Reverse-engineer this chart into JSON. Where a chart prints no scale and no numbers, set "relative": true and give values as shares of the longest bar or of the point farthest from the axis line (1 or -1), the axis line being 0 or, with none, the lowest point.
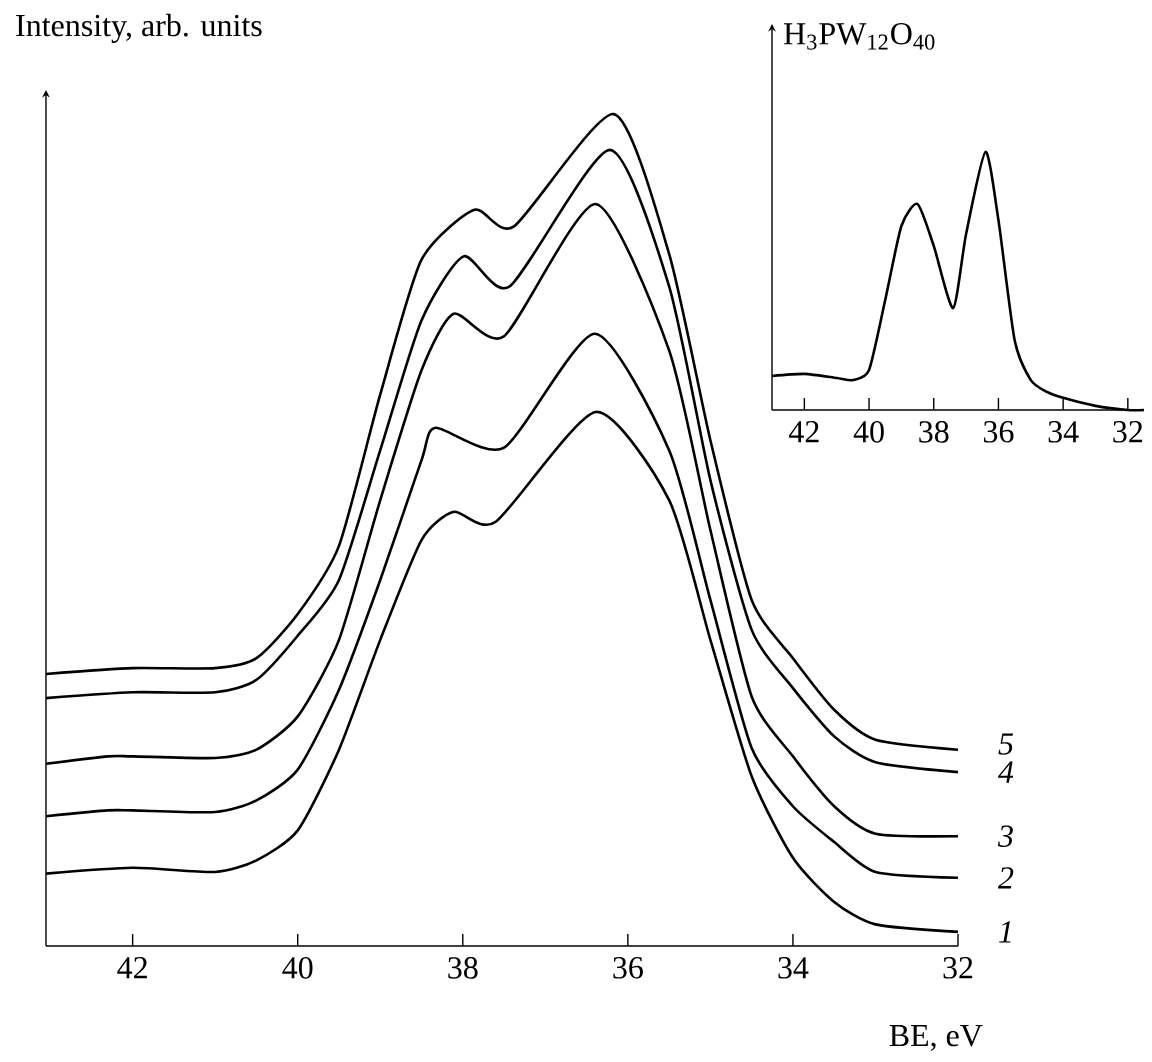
{
  "chart_data": [
    {
      "type": "line",
      "relative": true,
      "xlabel": "BE, eV",
      "ylabel": "Intensity, arb. units",
      "xlim": [
        43.05,
        32
      ],
      "xticks": [
        42,
        40,
        38,
        36,
        34,
        32
      ],
      "series": [
        {
          "name": "5",
          "color": "#000000",
          "x": [
            43.05,
            42,
            41,
            40.5,
            40,
            39.5,
            39,
            38.5,
            37.86,
            37.38,
            36.17,
            35.5,
            35,
            34.5,
            34,
            33.5,
            33,
            32
          ],
          "values": [
            0.327,
            0.334,
            0.334,
            0.346,
            0.399,
            0.481,
            0.663,
            0.825,
            0.885,
            0.865,
            1.0,
            0.832,
            0.608,
            0.416,
            0.346,
            0.284,
            0.248,
            0.236
          ]
        },
        {
          "name": "4",
          "color": "#000000",
          "x": [
            43.05,
            42,
            41,
            40.5,
            40,
            39.5,
            39,
            38.5,
            37.99,
            37.43,
            36.22,
            35.5,
            35,
            34.5,
            34,
            33.5,
            33,
            32
          ],
          "values": [
            0.298,
            0.305,
            0.305,
            0.32,
            0.373,
            0.44,
            0.596,
            0.752,
            0.829,
            0.793,
            0.957,
            0.793,
            0.56,
            0.38,
            0.31,
            0.252,
            0.221,
            0.209
          ]
        },
        {
          "name": "3",
          "color": "#000000",
          "x": [
            43.05,
            42.3,
            42,
            41,
            40.5,
            40,
            39.5,
            39,
            38.5,
            38.11,
            37.5,
            36.39,
            35.5,
            35,
            34.5,
            34,
            33.5,
            33,
            32
          ],
          "values": [
            0.219,
            0.228,
            0.228,
            0.226,
            0.236,
            0.276,
            0.368,
            0.536,
            0.692,
            0.76,
            0.733,
            0.892,
            0.716,
            0.5,
            0.3,
            0.228,
            0.168,
            0.135,
            0.132
          ]
        },
        {
          "name": "2",
          "color": "#000000",
          "x": [
            43.05,
            42.3,
            42,
            41,
            40.5,
            40,
            39.5,
            39,
            38.5,
            38.33,
            37.5,
            36.4,
            35.5,
            35,
            34.5,
            34,
            33.5,
            33,
            32
          ],
          "values": [
            0.156,
            0.163,
            0.163,
            0.161,
            0.175,
            0.212,
            0.308,
            0.44,
            0.584,
            0.623,
            0.599,
            0.736,
            0.596,
            0.416,
            0.238,
            0.168,
            0.125,
            0.089,
            0.082
          ]
        },
        {
          "name": "1",
          "color": "#000000",
          "x": [
            43.05,
            42,
            41,
            40.5,
            40,
            39.5,
            39,
            38.5,
            38.11,
            37.6,
            36.39,
            35.5,
            35,
            34.5,
            34,
            33.5,
            33,
            32
          ],
          "values": [
            0.087,
            0.094,
            0.089,
            0.103,
            0.139,
            0.236,
            0.368,
            0.488,
            0.522,
            0.51,
            0.642,
            0.536,
            0.368,
            0.204,
            0.106,
            0.053,
            0.026,
            0.017
          ]
        }
      ]
    },
    {
      "type": "line",
      "relative": true,
      "title": "H$_{3}$PW$_{12}$O$_{40}$",
      "xlim": [
        43,
        31.5
      ],
      "xticks": [
        42,
        40,
        38,
        36,
        34,
        32
      ],
      "series": [
        {
          "color": "#000000",
          "x": [
            43,
            42,
            41,
            40.5,
            40,
            39.5,
            39,
            38.5,
            38,
            37.4,
            37,
            36.4,
            36,
            35.5,
            35,
            34.5,
            34,
            33,
            32,
            31.5
          ],
          "values": [
            0.132,
            0.14,
            0.124,
            0.116,
            0.155,
            0.426,
            0.713,
            0.798,
            0.636,
            0.395,
            0.682,
            1.0,
            0.736,
            0.271,
            0.116,
            0.07,
            0.047,
            0.016,
            0.0,
            0.0
          ]
        }
      ]
    }
  ]
}
